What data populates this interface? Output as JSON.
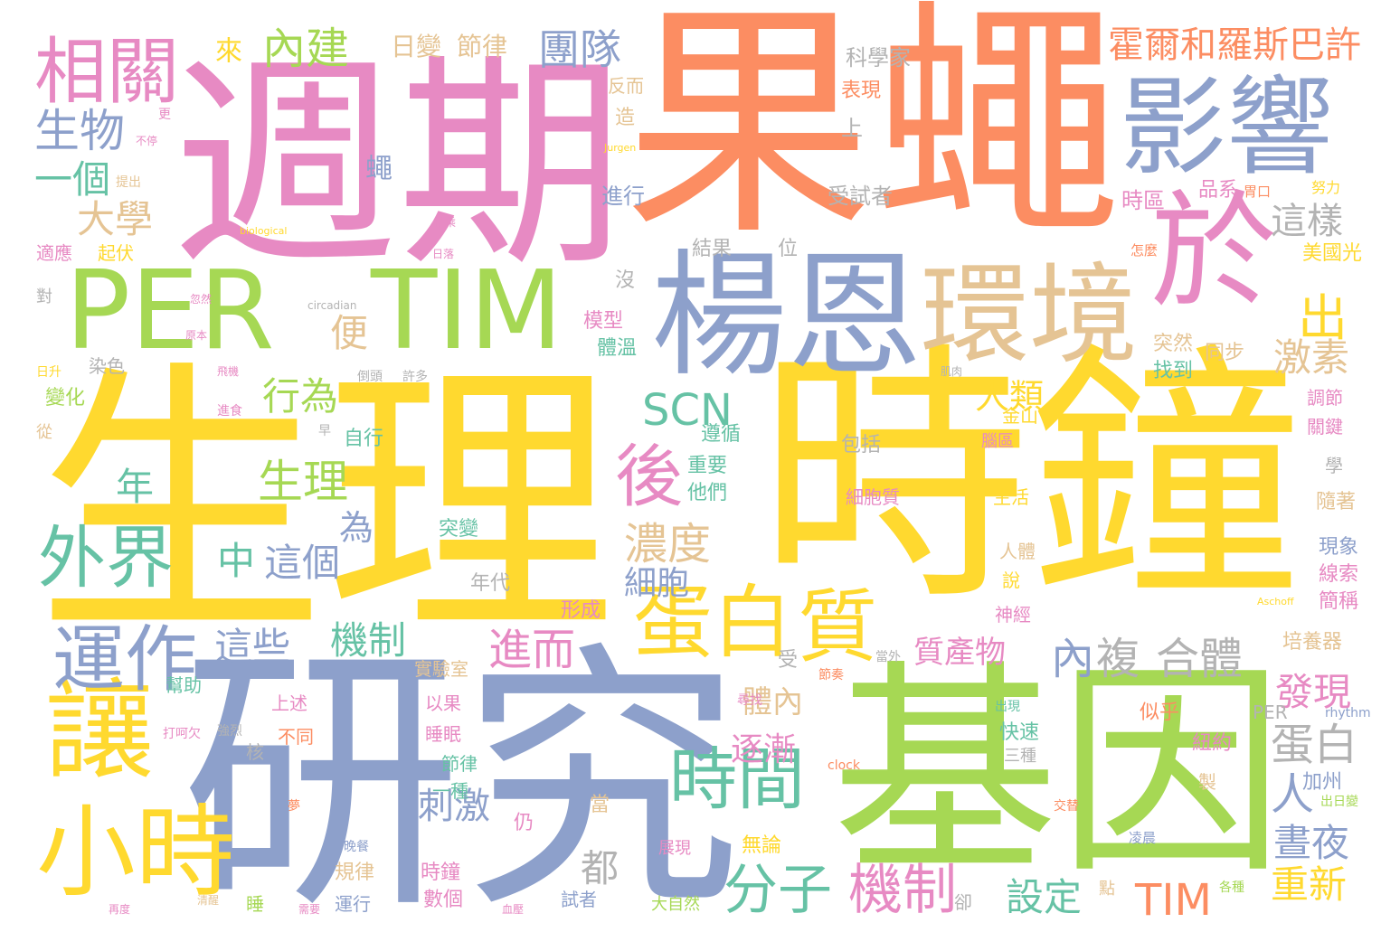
{
  "palette": {
    "orange": "#fc8d62",
    "blue": "#8da0cb",
    "pink": "#e78ac3",
    "green": "#a6d854",
    "yellow": "#ffd92f",
    "tan": "#e5c494",
    "grey": "#b3b3b3",
    "teal": "#66c2a5"
  },
  "words": [
    {
      "text": "果蠅",
      "color": "orange"
    },
    {
      "text": "週期",
      "color": "pink"
    },
    {
      "text": "生理",
      "color": "yellow"
    },
    {
      "text": "時鐘",
      "color": "yellow"
    },
    {
      "text": "研究",
      "color": "blue"
    },
    {
      "text": "基因",
      "color": "green"
    },
    {
      "text": "楊恩",
      "color": "blue"
    },
    {
      "text": "PER",
      "color": "green"
    },
    {
      "text": "TIM",
      "color": "green"
    },
    {
      "text": "影響",
      "color": "blue"
    },
    {
      "text": "環境",
      "color": "tan"
    },
    {
      "text": "於",
      "color": "pink"
    },
    {
      "text": "蛋白",
      "color": "yellow"
    },
    {
      "text": "質",
      "color": "yellow"
    },
    {
      "text": "讓",
      "color": "yellow"
    },
    {
      "text": "小時",
      "color": "yellow"
    },
    {
      "text": "外界",
      "color": "teal"
    },
    {
      "text": "運作",
      "color": "blue"
    },
    {
      "text": "相關",
      "color": "pink"
    },
    {
      "text": "時間",
      "color": "teal"
    },
    {
      "text": "後",
      "color": "pink"
    },
    {
      "text": "分子",
      "color": "teal"
    },
    {
      "text": "機制",
      "color": "pink"
    },
    {
      "text": "霍爾和羅斯巴許",
      "color": "orange"
    },
    {
      "text": "生物",
      "color": "blue"
    },
    {
      "text": "生理",
      "color": "green"
    },
    {
      "text": "SCN",
      "color": "teal"
    },
    {
      "text": "出",
      "color": "yellow"
    },
    {
      "text": "團隊",
      "color": "blue"
    },
    {
      "text": "內建",
      "color": "green"
    },
    {
      "text": "一個",
      "color": "teal"
    },
    {
      "text": "大學",
      "color": "tan"
    },
    {
      "text": "行為",
      "color": "green"
    },
    {
      "text": "濃度",
      "color": "tan"
    },
    {
      "text": "機制",
      "color": "teal"
    },
    {
      "text": "進而",
      "color": "pink"
    },
    {
      "text": "這些",
      "color": "blue"
    },
    {
      "text": "中",
      "color": "teal"
    },
    {
      "text": "這個",
      "color": "blue"
    },
    {
      "text": "人類",
      "color": "yellow"
    },
    {
      "text": "激素",
      "color": "tan"
    },
    {
      "text": "這樣",
      "color": "grey"
    },
    {
      "text": "蛋白",
      "color": "grey"
    },
    {
      "text": "內",
      "color": "blue"
    },
    {
      "text": "複",
      "color": "grey"
    },
    {
      "text": "合體",
      "color": "grey"
    },
    {
      "text": "發現",
      "color": "pink"
    },
    {
      "text": "人",
      "color": "blue"
    },
    {
      "text": "晝夜",
      "color": "blue"
    },
    {
      "text": "重新",
      "color": "yellow"
    },
    {
      "text": "TIM",
      "color": "orange"
    },
    {
      "text": "設定",
      "color": "teal"
    },
    {
      "text": "刺激",
      "color": "blue"
    },
    {
      "text": "細胞",
      "color": "blue"
    },
    {
      "text": "逐漸",
      "color": "pink"
    },
    {
      "text": "體內",
      "color": "tan"
    },
    {
      "text": "質產物",
      "color": "pink"
    },
    {
      "text": "便",
      "color": "tan"
    },
    {
      "text": "年",
      "color": "teal"
    },
    {
      "text": "為",
      "color": "blue"
    },
    {
      "text": "都",
      "color": "grey"
    },
    {
      "text": "來",
      "color": "yellow"
    },
    {
      "text": "蠅",
      "color": "blue"
    },
    {
      "text": "日變",
      "color": "tan"
    },
    {
      "text": "節律",
      "color": "tan"
    },
    {
      "text": "科學家",
      "color": "grey"
    },
    {
      "text": "表現",
      "color": "orange"
    },
    {
      "text": "上",
      "color": "grey"
    },
    {
      "text": "受試者",
      "color": "grey"
    },
    {
      "text": "時區",
      "color": "pink"
    },
    {
      "text": "品系",
      "color": "pink"
    },
    {
      "text": "胃口",
      "color": "orange"
    },
    {
      "text": "努力",
      "color": "yellow"
    },
    {
      "text": "美國光",
      "color": "yellow"
    },
    {
      "text": "怎麼",
      "color": "orange"
    },
    {
      "text": "進行",
      "color": "blue"
    },
    {
      "text": "造",
      "color": "tan"
    },
    {
      "text": "反而",
      "color": "tan"
    },
    {
      "text": "Jurgen",
      "color": "yellow"
    },
    {
      "text": "結果",
      "color": "grey"
    },
    {
      "text": "位",
      "color": "grey"
    },
    {
      "text": "沒",
      "color": "grey"
    },
    {
      "text": "模型",
      "color": "pink"
    },
    {
      "text": "體溫",
      "color": "teal"
    },
    {
      "text": "突然",
      "color": "tan"
    },
    {
      "text": "同步",
      "color": "tan"
    },
    {
      "text": "找到",
      "color": "teal"
    },
    {
      "text": "調節",
      "color": "pink"
    },
    {
      "text": "關鍵",
      "color": "pink"
    },
    {
      "text": "學",
      "color": "grey"
    },
    {
      "text": "隨著",
      "color": "tan"
    },
    {
      "text": "現象",
      "color": "blue"
    },
    {
      "text": "線索",
      "color": "pink"
    },
    {
      "text": "簡稱",
      "color": "pink"
    },
    {
      "text": "培養器",
      "color": "tan"
    },
    {
      "text": "Aschoff",
      "color": "yellow"
    },
    {
      "text": "rhythm",
      "color": "blue"
    },
    {
      "text": "PER",
      "color": "grey"
    },
    {
      "text": "似乎",
      "color": "orange"
    },
    {
      "text": "紐約",
      "color": "pink"
    },
    {
      "text": "加州",
      "color": "blue"
    },
    {
      "text": "出日變",
      "color": "green"
    },
    {
      "text": "製",
      "color": "tan"
    },
    {
      "text": "凌晨",
      "color": "blue"
    },
    {
      "text": "各種",
      "color": "green"
    },
    {
      "text": "點",
      "color": "tan"
    },
    {
      "text": "卻",
      "color": "grey"
    },
    {
      "text": "金山",
      "color": "yellow"
    },
    {
      "text": "腦區",
      "color": "pink"
    },
    {
      "text": "包括",
      "color": "grey"
    },
    {
      "text": "細胞質",
      "color": "pink"
    },
    {
      "text": "生活",
      "color": "yellow"
    },
    {
      "text": "人體",
      "color": "tan"
    },
    {
      "text": "說",
      "color": "yellow"
    },
    {
      "text": "神經",
      "color": "pink"
    },
    {
      "text": "快速",
      "color": "teal"
    },
    {
      "text": "三種",
      "color": "grey"
    },
    {
      "text": "出現",
      "color": "teal"
    },
    {
      "text": "當外",
      "color": "grey"
    },
    {
      "text": "節奏",
      "color": "orange"
    },
    {
      "text": "受",
      "color": "grey"
    },
    {
      "text": "尋找",
      "color": "pink"
    },
    {
      "text": "遵循",
      "color": "teal"
    },
    {
      "text": "重要",
      "color": "teal"
    },
    {
      "text": "他們",
      "color": "teal"
    },
    {
      "text": "自行",
      "color": "teal"
    },
    {
      "text": "突變",
      "color": "teal"
    },
    {
      "text": "年代",
      "color": "grey"
    },
    {
      "text": "形成",
      "color": "pink"
    },
    {
      "text": "實驗室",
      "color": "tan"
    },
    {
      "text": "以果",
      "color": "pink"
    },
    {
      "text": "睡眠",
      "color": "pink"
    },
    {
      "text": "節律",
      "color": "teal"
    },
    {
      "text": "一種",
      "color": "teal"
    },
    {
      "text": "仍",
      "color": "pink"
    },
    {
      "text": "當",
      "color": "tan"
    },
    {
      "text": "無論",
      "color": "yellow"
    },
    {
      "text": "展現",
      "color": "pink"
    },
    {
      "text": "時鐘",
      "color": "pink"
    },
    {
      "text": "數個",
      "color": "pink"
    },
    {
      "text": "試者",
      "color": "blue"
    },
    {
      "text": "大自然",
      "color": "green"
    },
    {
      "text": "規律",
      "color": "tan"
    },
    {
      "text": "睡",
      "color": "green"
    },
    {
      "text": "運行",
      "color": "blue"
    },
    {
      "text": "幫助",
      "color": "teal"
    },
    {
      "text": "上述",
      "color": "pink"
    },
    {
      "text": "不同",
      "color": "orange"
    },
    {
      "text": "核",
      "color": "grey"
    },
    {
      "text": "強烈",
      "color": "grey"
    },
    {
      "text": "打呵欠",
      "color": "pink"
    },
    {
      "text": "變化",
      "color": "green"
    },
    {
      "text": "染色",
      "color": "grey"
    },
    {
      "text": "日升",
      "color": "yellow"
    },
    {
      "text": "從",
      "color": "tan"
    },
    {
      "text": "對",
      "color": "grey"
    },
    {
      "text": "適應",
      "color": "pink"
    },
    {
      "text": "起伏",
      "color": "yellow"
    },
    {
      "text": "biological",
      "color": "yellow"
    },
    {
      "text": "circadian",
      "color": "grey"
    },
    {
      "text": "不停",
      "color": "pink"
    },
    {
      "text": "更",
      "color": "pink"
    },
    {
      "text": "提出",
      "color": "tan"
    },
    {
      "text": "原本",
      "color": "pink"
    },
    {
      "text": "忽然",
      "color": "pink"
    },
    {
      "text": "搭乘",
      "color": "pink"
    },
    {
      "text": "日落",
      "color": "pink"
    },
    {
      "text": "飛機",
      "color": "pink"
    },
    {
      "text": "倒頭",
      "color": "grey"
    },
    {
      "text": "許多",
      "color": "grey"
    },
    {
      "text": "進食",
      "color": "pink"
    },
    {
      "text": "早",
      "color": "grey"
    },
    {
      "text": "夢",
      "color": "orange"
    },
    {
      "text": "晚餐",
      "color": "blue"
    },
    {
      "text": "清醒",
      "color": "tan"
    },
    {
      "text": "需要",
      "color": "pink"
    },
    {
      "text": "再度",
      "color": "pink"
    },
    {
      "text": "血壓",
      "color": "pink"
    },
    {
      "text": "交替",
      "color": "orange"
    },
    {
      "text": "clock",
      "color": "orange"
    },
    {
      "text": "肌肉",
      "color": "grey"
    }
  ]
}
